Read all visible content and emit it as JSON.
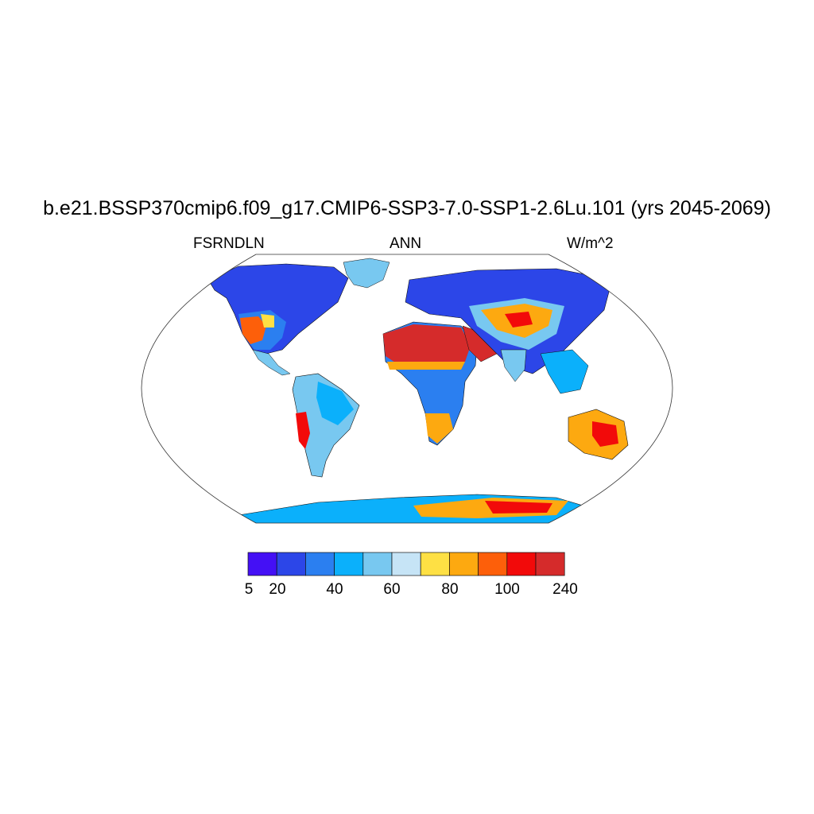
{
  "title": "b.e21.BSSP370cmip6.f09_g17.CMIP6-SSP3-7.0-SSP1-2.6Lu.101 (yrs 2045-2069)",
  "variable": "FSRNDLN",
  "season": "ANN",
  "units": "W/m^2",
  "colorbar": {
    "colors": [
      "#4410f5",
      "#2c46e8",
      "#2b7ff0",
      "#0bb0fb",
      "#78c8f0",
      "#c6e4f6",
      "#fee044",
      "#fda910",
      "#fd5f0a",
      "#f20a0a",
      "#d52b2b"
    ],
    "tick_labels": [
      "5",
      "20",
      "40",
      "60",
      "80",
      "100",
      "240"
    ]
  }
}
